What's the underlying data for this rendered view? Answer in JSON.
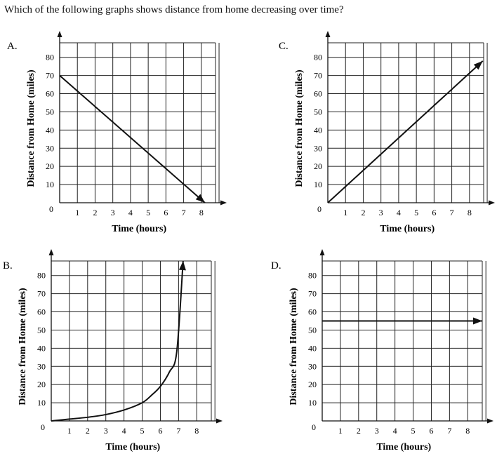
{
  "question": "Which of the following graphs shows distance from home decreasing over time?",
  "chart_data": [
    {
      "letter": "A.",
      "type": "line",
      "xlabel": "Time (hours)",
      "ylabel": "Distance from Home  (miles)",
      "origin": "0",
      "xticks": [
        "1",
        "2",
        "3",
        "4",
        "5",
        "6",
        "7",
        "8"
      ],
      "yticks": [
        "10",
        "20",
        "30",
        "40",
        "50",
        "60",
        "70",
        "80"
      ],
      "xlim": [
        0,
        8.8
      ],
      "ylim": [
        0,
        88
      ],
      "series": [
        {
          "x": [
            0,
            8.2
          ],
          "y": [
            70,
            0
          ]
        }
      ]
    },
    {
      "letter": "C.",
      "type": "line",
      "xlabel": "Time (hours)",
      "ylabel": "Distance from Home  (miles)",
      "origin": "0",
      "xticks": [
        "1",
        "2",
        "3",
        "4",
        "5",
        "6",
        "7",
        "8"
      ],
      "yticks": [
        "10",
        "20",
        "30",
        "40",
        "50",
        "60",
        "70",
        "80"
      ],
      "xlim": [
        0,
        8.8
      ],
      "ylim": [
        0,
        88
      ],
      "series": [
        {
          "x": [
            0,
            8.75
          ],
          "y": [
            0,
            78
          ]
        }
      ]
    },
    {
      "letter": "B.",
      "type": "line",
      "xlabel": "Time (hours)",
      "ylabel": "Distance from Home  (miles)",
      "origin": "0",
      "xticks": [
        "1",
        "2",
        "3",
        "4",
        "5",
        "6",
        "7",
        "8"
      ],
      "yticks": [
        "10",
        "20",
        "30",
        "40",
        "50",
        "60",
        "70",
        "80"
      ],
      "xlim": [
        0,
        8.8
      ],
      "ylim": [
        0,
        88
      ],
      "series": [
        {
          "x": [
            0,
            1,
            2,
            3,
            4,
            5,
            5.5,
            6,
            6.5,
            6.9,
            7.25
          ],
          "y": [
            0,
            1,
            2,
            3.5,
            6,
            10,
            14,
            19,
            27,
            38,
            88
          ]
        }
      ]
    },
    {
      "letter": "D.",
      "type": "line",
      "xlabel": "Time (hours)",
      "ylabel": "Distance from Home  (miles)",
      "origin": "0",
      "xticks": [
        "1",
        "2",
        "3",
        "4",
        "5",
        "6",
        "7",
        "8"
      ],
      "yticks": [
        "10",
        "20",
        "30",
        "40",
        "50",
        "60",
        "70",
        "80"
      ],
      "xlim": [
        0,
        8.8
      ],
      "ylim": [
        0,
        88
      ],
      "series": [
        {
          "x": [
            0,
            8.8
          ],
          "y": [
            55,
            55
          ]
        }
      ]
    }
  ]
}
